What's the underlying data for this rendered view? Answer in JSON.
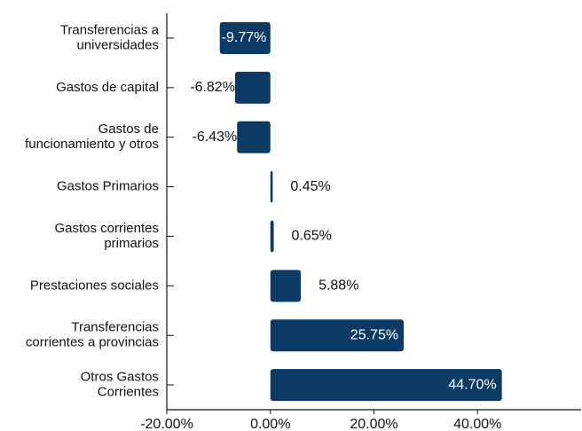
{
  "chart_data": {
    "type": "hbar",
    "categories": [
      "Transferencias a\nuniversidades",
      "Gastos de capital",
      "Gastos de\nfuncionamiento y otros",
      "Gastos Primarios",
      "Gastos corrientes\nprimarios",
      "Prestaciones sociales",
      "Transferencias\ncorrientes a provincias",
      "Otros Gastos\nCorrientes"
    ],
    "values": [
      -9.77,
      -6.82,
      -6.43,
      0.45,
      0.65,
      5.88,
      25.75,
      44.7
    ],
    "value_labels": [
      "-9.77%",
      "-6.82%",
      "-6.43%",
      "0.45%",
      "0.65%",
      "5.88%",
      "25.75%",
      "44.70%"
    ],
    "color": "#0b3a64",
    "xlim": [
      -20,
      60
    ],
    "xticks": [
      {
        "value": -20,
        "label": "-20.00%"
      },
      {
        "value": 0,
        "label": "0.00%"
      },
      {
        "value": 20,
        "label": "20.00%"
      },
      {
        "value": 40,
        "label": "40.00%"
      }
    ]
  }
}
